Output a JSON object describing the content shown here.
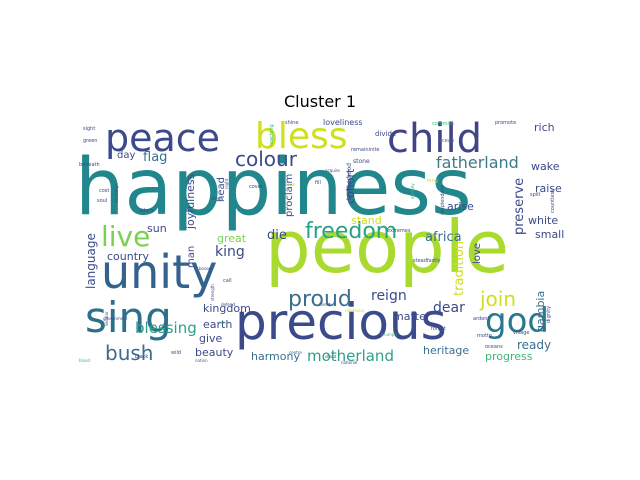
{
  "title": "Cluster 1",
  "palette": {
    "navy": "#3b4a8a",
    "indigo": "#453886",
    "teal": "#21878d",
    "blue": "#33638d",
    "green": "#3bba73",
    "lime": "#a9db2f",
    "yellow": "#cfe01d",
    "purple": "#482475"
  },
  "words": [
    {
      "text": "happiness",
      "size": 1.0,
      "color": "#21878d",
      "vertical": false
    },
    {
      "text": "people",
      "size": 0.95,
      "color": "#a9db2f",
      "vertical": false
    },
    {
      "text": "precious",
      "size": 0.7,
      "color": "#3b4a8a",
      "vertical": false
    },
    {
      "text": "unity",
      "size": 0.62,
      "color": "#33638d",
      "vertical": false
    },
    {
      "text": "sing",
      "size": 0.55,
      "color": "#2d708e",
      "vertical": false
    },
    {
      "text": "child",
      "size": 0.52,
      "color": "#414487",
      "vertical": false
    },
    {
      "text": "peace",
      "size": 0.5,
      "color": "#3b4a8a",
      "vertical": false
    },
    {
      "text": "bless",
      "size": 0.47,
      "color": "#cfe01d",
      "vertical": false
    },
    {
      "text": "god",
      "size": 0.44,
      "color": "#2a788e",
      "vertical": false
    },
    {
      "text": "live",
      "size": 0.37,
      "color": "#7ad151",
      "vertical": false
    },
    {
      "text": "freedom",
      "size": 0.3,
      "color": "#25a384",
      "vertical": false
    },
    {
      "text": "proud",
      "size": 0.28,
      "color": "#3b6f8e",
      "vertical": false
    },
    {
      "text": "join",
      "size": 0.27,
      "color": "#cfe01d",
      "vertical": false
    },
    {
      "text": "colour",
      "size": 0.26,
      "color": "#3b4a8a",
      "vertical": false
    },
    {
      "text": "bush",
      "size": 0.24,
      "color": "#3e6b8e",
      "vertical": false
    },
    {
      "text": "fatherland",
      "size": 0.2,
      "color": "#3f7a8c",
      "vertical": false
    },
    {
      "text": "blessing",
      "size": 0.19,
      "color": "#2fa087",
      "vertical": false
    },
    {
      "text": "motherland",
      "size": 0.19,
      "color": "#2fa087",
      "vertical": false
    },
    {
      "text": "reign",
      "size": 0.18,
      "color": "#3b4a8a",
      "vertical": false
    },
    {
      "text": "dear",
      "size": 0.18,
      "color": "#3b4a8a",
      "vertical": false
    },
    {
      "text": "king",
      "size": 0.18,
      "color": "#3b4a8a",
      "vertical": false
    },
    {
      "text": "die",
      "size": 0.17,
      "color": "#3b4a8a",
      "vertical": false
    },
    {
      "text": "flag",
      "size": 0.17,
      "color": "#3b6f8e",
      "vertical": false
    },
    {
      "text": "africa",
      "size": 0.17,
      "color": "#3b6f8e",
      "vertical": false
    },
    {
      "text": "ready",
      "size": 0.16,
      "color": "#3b6f8e",
      "vertical": false
    },
    {
      "text": "preserve",
      "size": 0.16,
      "color": "#3b4a8a",
      "vertical": true
    },
    {
      "text": "tradition",
      "size": 0.16,
      "color": "#cfe01d",
      "vertical": true
    },
    {
      "text": "language",
      "size": 0.15,
      "color": "#3b4a8a",
      "vertical": true
    },
    {
      "text": "cohort",
      "size": 0.14,
      "color": "#3b4a8a",
      "vertical": true
    },
    {
      "text": "gambia",
      "size": 0.13,
      "color": "#3b6f8e",
      "vertical": true
    },
    {
      "text": "joyfulness",
      "size": 0.13,
      "color": "#3b4a8a",
      "vertical": true
    },
    {
      "text": "proclaim",
      "size": 0.12,
      "color": "#3b4a8a",
      "vertical": true
    },
    {
      "text": "love",
      "size": 0.12,
      "color": "#3b4a8a",
      "vertical": true
    },
    {
      "text": "man",
      "size": 0.12,
      "color": "#3b4a8a",
      "vertical": true
    },
    {
      "text": "head",
      "size": 0.11,
      "color": "#3b4a8a",
      "vertical": true
    },
    {
      "text": "arise",
      "size": 0.14,
      "color": "#3b4a8a",
      "vertical": false
    },
    {
      "text": "stand",
      "size": 0.14,
      "color": "#cfe01d",
      "vertical": false
    },
    {
      "text": "matter",
      "size": 0.14,
      "color": "#3b4a8a",
      "vertical": false
    },
    {
      "text": "rich",
      "size": 0.14,
      "color": "#3b4a8a",
      "vertical": false
    },
    {
      "text": "wake",
      "size": 0.14,
      "color": "#3b4a8a",
      "vertical": false
    },
    {
      "text": "raise",
      "size": 0.14,
      "color": "#3b4a8a",
      "vertical": false
    },
    {
      "text": "white",
      "size": 0.13,
      "color": "#3b4a8a",
      "vertical": false
    },
    {
      "text": "small",
      "size": 0.13,
      "color": "#3b4a8a",
      "vertical": false
    },
    {
      "text": "great",
      "size": 0.13,
      "color": "#7ad151",
      "vertical": false
    },
    {
      "text": "country",
      "size": 0.13,
      "color": "#3b4a8a",
      "vertical": false
    },
    {
      "text": "kingdom",
      "size": 0.13,
      "color": "#3b4a8a",
      "vertical": false
    },
    {
      "text": "earth",
      "size": 0.13,
      "color": "#3b4a8a",
      "vertical": false
    },
    {
      "text": "give",
      "size": 0.13,
      "color": "#3b4a8a",
      "vertical": false
    },
    {
      "text": "beauty",
      "size": 0.13,
      "color": "#3b4a8a",
      "vertical": false
    },
    {
      "text": "harmony",
      "size": 0.13,
      "color": "#3b6f8e",
      "vertical": false
    },
    {
      "text": "heritage",
      "size": 0.13,
      "color": "#3b6f8e",
      "vertical": false
    },
    {
      "text": "progress",
      "size": 0.13,
      "color": "#3bba73",
      "vertical": false
    },
    {
      "text": "sun",
      "size": 0.13,
      "color": "#3b4a8a",
      "vertical": false
    },
    {
      "text": "day",
      "size": 0.13,
      "color": "#3b4a8a",
      "vertical": false
    },
    {
      "text": "loveliness",
      "size": 0.1,
      "color": "#3b4a8a",
      "vertical": false
    },
    {
      "text": "divide",
      "size": 0.08,
      "color": "#3b4a8a",
      "vertical": false
    },
    {
      "text": "brotherhood",
      "size": 0.08,
      "color": "#3b4a8a",
      "vertical": true
    },
    {
      "text": "remaininite",
      "size": 0.05,
      "color": "#3b4a8a",
      "vertical": false
    },
    {
      "text": "stone",
      "size": 0.06,
      "color": "#3b4a8a",
      "vertical": false
    },
    {
      "text": "promote",
      "size": 0.05,
      "color": "#3b4a8a",
      "vertical": false
    },
    {
      "text": "common",
      "size": 0.05,
      "color": "#3bba73",
      "vertical": false
    },
    {
      "text": "ocean",
      "size": 0.05,
      "color": "#3b6f8e",
      "vertical": false
    },
    {
      "text": "shine",
      "size": 0.05,
      "color": "#3b4a8a",
      "vertical": false
    },
    {
      "text": "reaching",
      "size": 0.05,
      "color": "#3bba73",
      "vertical": true
    },
    {
      "text": "sight",
      "size": 0.05,
      "color": "#3b4a8a",
      "vertical": false
    },
    {
      "text": "green",
      "size": 0.05,
      "color": "#3b4a8a",
      "vertical": false
    },
    {
      "text": "beneath",
      "size": 0.05,
      "color": "#3b4a8a",
      "vertical": false
    },
    {
      "text": "cost",
      "size": 0.05,
      "color": "#3b4a8a",
      "vertical": false
    },
    {
      "text": "soul",
      "size": 0.06,
      "color": "#3b4a8a",
      "vertical": false
    },
    {
      "text": "adorn",
      "size": 0.06,
      "color": "#3b4a8a",
      "vertical": false
    },
    {
      "text": "black",
      "size": 0.06,
      "color": "#3b4a8a",
      "vertical": false
    },
    {
      "text": "renew",
      "size": 0.04,
      "color": "#3b4a8a",
      "vertical": false
    },
    {
      "text": "wild",
      "size": 0.06,
      "color": "#3b4a8a",
      "vertical": false
    },
    {
      "text": "bosom",
      "size": 0.05,
      "color": "#3b4a8a",
      "vertical": false
    },
    {
      "text": "call",
      "size": 0.06,
      "color": "#3b4a8a",
      "vertical": false
    },
    {
      "text": "defend",
      "size": 0.05,
      "color": "#3b4a8a",
      "vertical": false
    },
    {
      "text": "work",
      "size": 0.05,
      "color": "#3bba73",
      "vertical": false
    },
    {
      "text": "nation",
      "size": 0.05,
      "color": "#3b6f8e",
      "vertical": false
    },
    {
      "text": "cover",
      "size": 0.05,
      "color": "#3b4a8a",
      "vertical": false
    },
    {
      "text": "fill",
      "size": 0.05,
      "color": "#3b4a8a",
      "vertical": false
    },
    {
      "text": "acquire",
      "size": 0.05,
      "color": "#3b4a8a",
      "vertical": false
    },
    {
      "text": "perm",
      "size": 0.05,
      "color": "#cfe01d",
      "vertical": false
    },
    {
      "text": "righteous",
      "size": 0.05,
      "color": "#cfe01d",
      "vertical": false
    },
    {
      "text": "triumph",
      "size": 0.05,
      "color": "#3bba73",
      "vertical": false
    },
    {
      "text": "forest",
      "size": 0.05,
      "color": "#3b4a8a",
      "vertical": false
    },
    {
      "text": "centre",
      "size": 0.05,
      "color": "#3b4a8a",
      "vertical": false
    },
    {
      "text": "shout",
      "size": 0.04,
      "color": "#3b4a8a",
      "vertical": false
    },
    {
      "text": "national",
      "size": 0.04,
      "color": "#3b4a8a",
      "vertical": false
    },
    {
      "text": "long",
      "size": 0.05,
      "color": "#cfe01d",
      "vertical": false
    },
    {
      "text": "extremes",
      "size": 0.05,
      "color": "#3b4a8a",
      "vertical": false
    },
    {
      "text": "steadfastly",
      "size": 0.06,
      "color": "#3b4a8a",
      "vertical": false
    },
    {
      "text": "eternity",
      "size": 0.04,
      "color": "#3bba73",
      "vertical": true
    },
    {
      "text": "resplendent",
      "size": 0.05,
      "color": "#3b4a8a",
      "vertical": true
    },
    {
      "text": "ardent",
      "size": 0.06,
      "color": "#3b4a8a",
      "vertical": false
    },
    {
      "text": "motto",
      "size": 0.06,
      "color": "#3b4a8a",
      "vertical": false
    },
    {
      "text": "village",
      "size": 0.06,
      "color": "#3b4a8a",
      "vertical": false
    },
    {
      "text": "oceans",
      "size": 0.05,
      "color": "#3b4a8a",
      "vertical": false
    },
    {
      "text": "forget",
      "size": 0.05,
      "color": "#3b4a8a",
      "vertical": false
    },
    {
      "text": "spilt",
      "size": 0.05,
      "color": "#3b4a8a",
      "vertical": false
    },
    {
      "text": "countless",
      "size": 0.05,
      "color": "#3b4a8a",
      "vertical": true
    },
    {
      "text": "dignity",
      "size": 0.05,
      "color": "#3b4a8a",
      "vertical": true
    },
    {
      "text": "government",
      "size": 0.05,
      "color": "#3b4a8a",
      "vertical": false
    },
    {
      "text": "strength",
      "size": 0.05,
      "color": "#3b4a8a",
      "vertical": true
    },
    {
      "text": "sovereign",
      "size": 0.05,
      "color": "#3b4a8a",
      "vertical": true
    },
    {
      "text": "secular",
      "size": 0.05,
      "color": "#3b4a8a",
      "vertical": true
    },
    {
      "text": "night",
      "size": 0.05,
      "color": "#3b4a8a",
      "vertical": true
    },
    {
      "text": "blood",
      "size": 0.05,
      "color": "#3bba73",
      "vertical": false
    }
  ]
}
